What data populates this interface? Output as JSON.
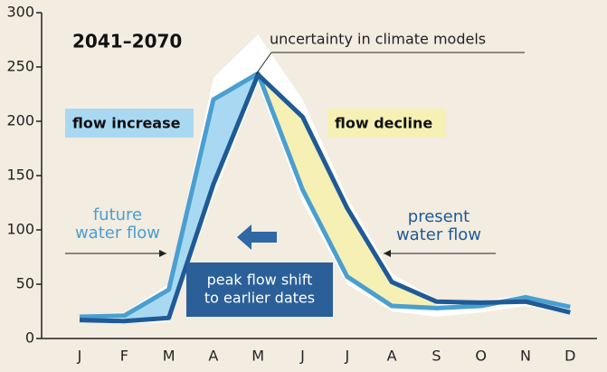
{
  "chart_data": {
    "type": "line",
    "title": "2041–2070",
    "categories": [
      "J",
      "F",
      "M",
      "A",
      "M",
      "J",
      "J",
      "A",
      "S",
      "O",
      "N",
      "D"
    ],
    "series": [
      {
        "name": [
          "present",
          "water flow"
        ],
        "color": "#1f5a96",
        "values": [
          17,
          16,
          19,
          142,
          243,
          204,
          120,
          52,
          34,
          33,
          34,
          24
        ]
      },
      {
        "name": [
          "future",
          "water flow"
        ],
        "color": "#4a9fd0",
        "values": [
          20,
          21,
          45,
          220,
          244,
          137,
          57,
          30,
          28,
          30,
          38,
          29
        ]
      }
    ],
    "uncertainty": {
      "label": "uncertainty in climate models",
      "upper": [
        22,
        24,
        50,
        240,
        280,
        220,
        130,
        60,
        36,
        35,
        40,
        30
      ],
      "lower": [
        15,
        14,
        15,
        130,
        235,
        125,
        50,
        25,
        20,
        24,
        30,
        22
      ]
    },
    "annotations": {
      "increase": "flow increase",
      "decline": "flow decline",
      "shift": [
        "peak flow shift",
        "to earlier dates"
      ]
    },
    "ylim": [
      0,
      300
    ],
    "yticks": [
      0,
      50,
      100,
      150,
      200,
      250,
      300
    ]
  }
}
